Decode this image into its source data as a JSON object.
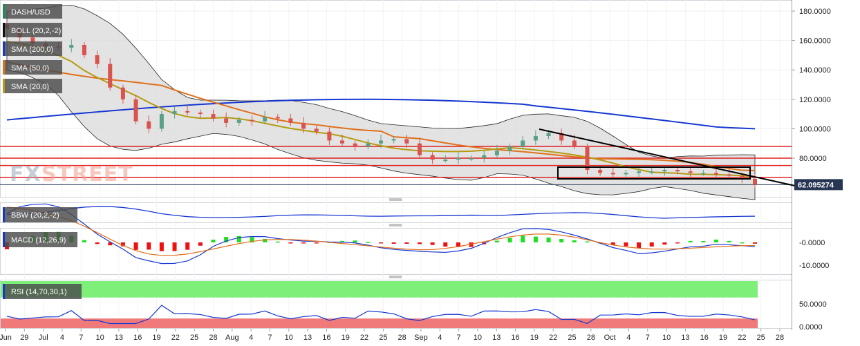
{
  "instrument": "DASH/USD",
  "watermark": {
    "prefix": "FX",
    "suffix": "STREET"
  },
  "current_price": "62.095274",
  "colors": {
    "bull": "#5aa084",
    "bear": "#d9534f",
    "sma200": "#1537d1",
    "sma50": "#e0701b",
    "sma20": "#b59b10",
    "boll_fill": "#d9d9d9",
    "resistance": "#e02020",
    "trendline": "#000000",
    "rsi_over": "#7ef07a",
    "rsi_under": "#f07a7a",
    "macd_pos": "#22dd22",
    "macd_neg": "#ee1111",
    "macd_line": "#1537d1",
    "macd_signal": "#e0701b"
  },
  "legend": [
    {
      "label": "DASH/USD",
      "swatch": "#1e8a5a"
    },
    {
      "label": "BOLL (20,2,-2)",
      "swatch": "#111111"
    },
    {
      "label": "SMA (200,0)",
      "swatch": "#1537d1"
    },
    {
      "label": "SMA (50,0)",
      "swatch": "#e0701b"
    },
    {
      "label": "SMA (20,0)",
      "swatch": "#b59b10"
    }
  ],
  "panels": [
    {
      "label": "BBW (20,2,-2)",
      "swatch": "#1537d1"
    },
    {
      "label": "MACD (12,26,9)",
      "swatch": "#1537d1"
    },
    {
      "label": "RSI (14,70,30,1)",
      "swatch": "#1537d1"
    }
  ],
  "chart_data": {
    "type": "candlestick",
    "y_ticks": [
      "180.0000",
      "160.0000",
      "140.0000",
      "120.0000",
      "100.0000",
      "80.0000"
    ],
    "macd_ticks": [
      "-0.0000",
      "-10.0000"
    ],
    "rsi_ticks": [
      "50.0000",
      "0.0000"
    ],
    "x_ticks": [
      "Jun",
      "29",
      "Jul",
      "4",
      "7",
      "10",
      "13",
      "16",
      "19",
      "22",
      "25",
      "28",
      "Aug",
      "4",
      "7",
      "10",
      "13",
      "16",
      "19",
      "22",
      "25",
      "28",
      "Sep",
      "4",
      "7",
      "10",
      "13",
      "16",
      "19",
      "22",
      "25",
      "28",
      "Oct",
      "4",
      "7",
      "10",
      "13",
      "16",
      "19",
      "22",
      "25",
      "28"
    ],
    "ohlc_close_approx": [
      168,
      162,
      158,
      156,
      155,
      157,
      150,
      144,
      128,
      120,
      105,
      100,
      110,
      112,
      111,
      110,
      107,
      104,
      106,
      105,
      108,
      107,
      104,
      100,
      98,
      92,
      90,
      88,
      90,
      92,
      93,
      90,
      82,
      79,
      79,
      80,
      80,
      82,
      85,
      88,
      92,
      95,
      97,
      92,
      88,
      72,
      70,
      69,
      70,
      71,
      71,
      72,
      71,
      70,
      70,
      69,
      68,
      66,
      62
    ],
    "resistance_levels": [
      88,
      80,
      75,
      67
    ],
    "sma200": [
      105,
      120,
      116
    ],
    "boll_ranges": {
      "upper_peak": 184,
      "lower_min": 63
    }
  }
}
